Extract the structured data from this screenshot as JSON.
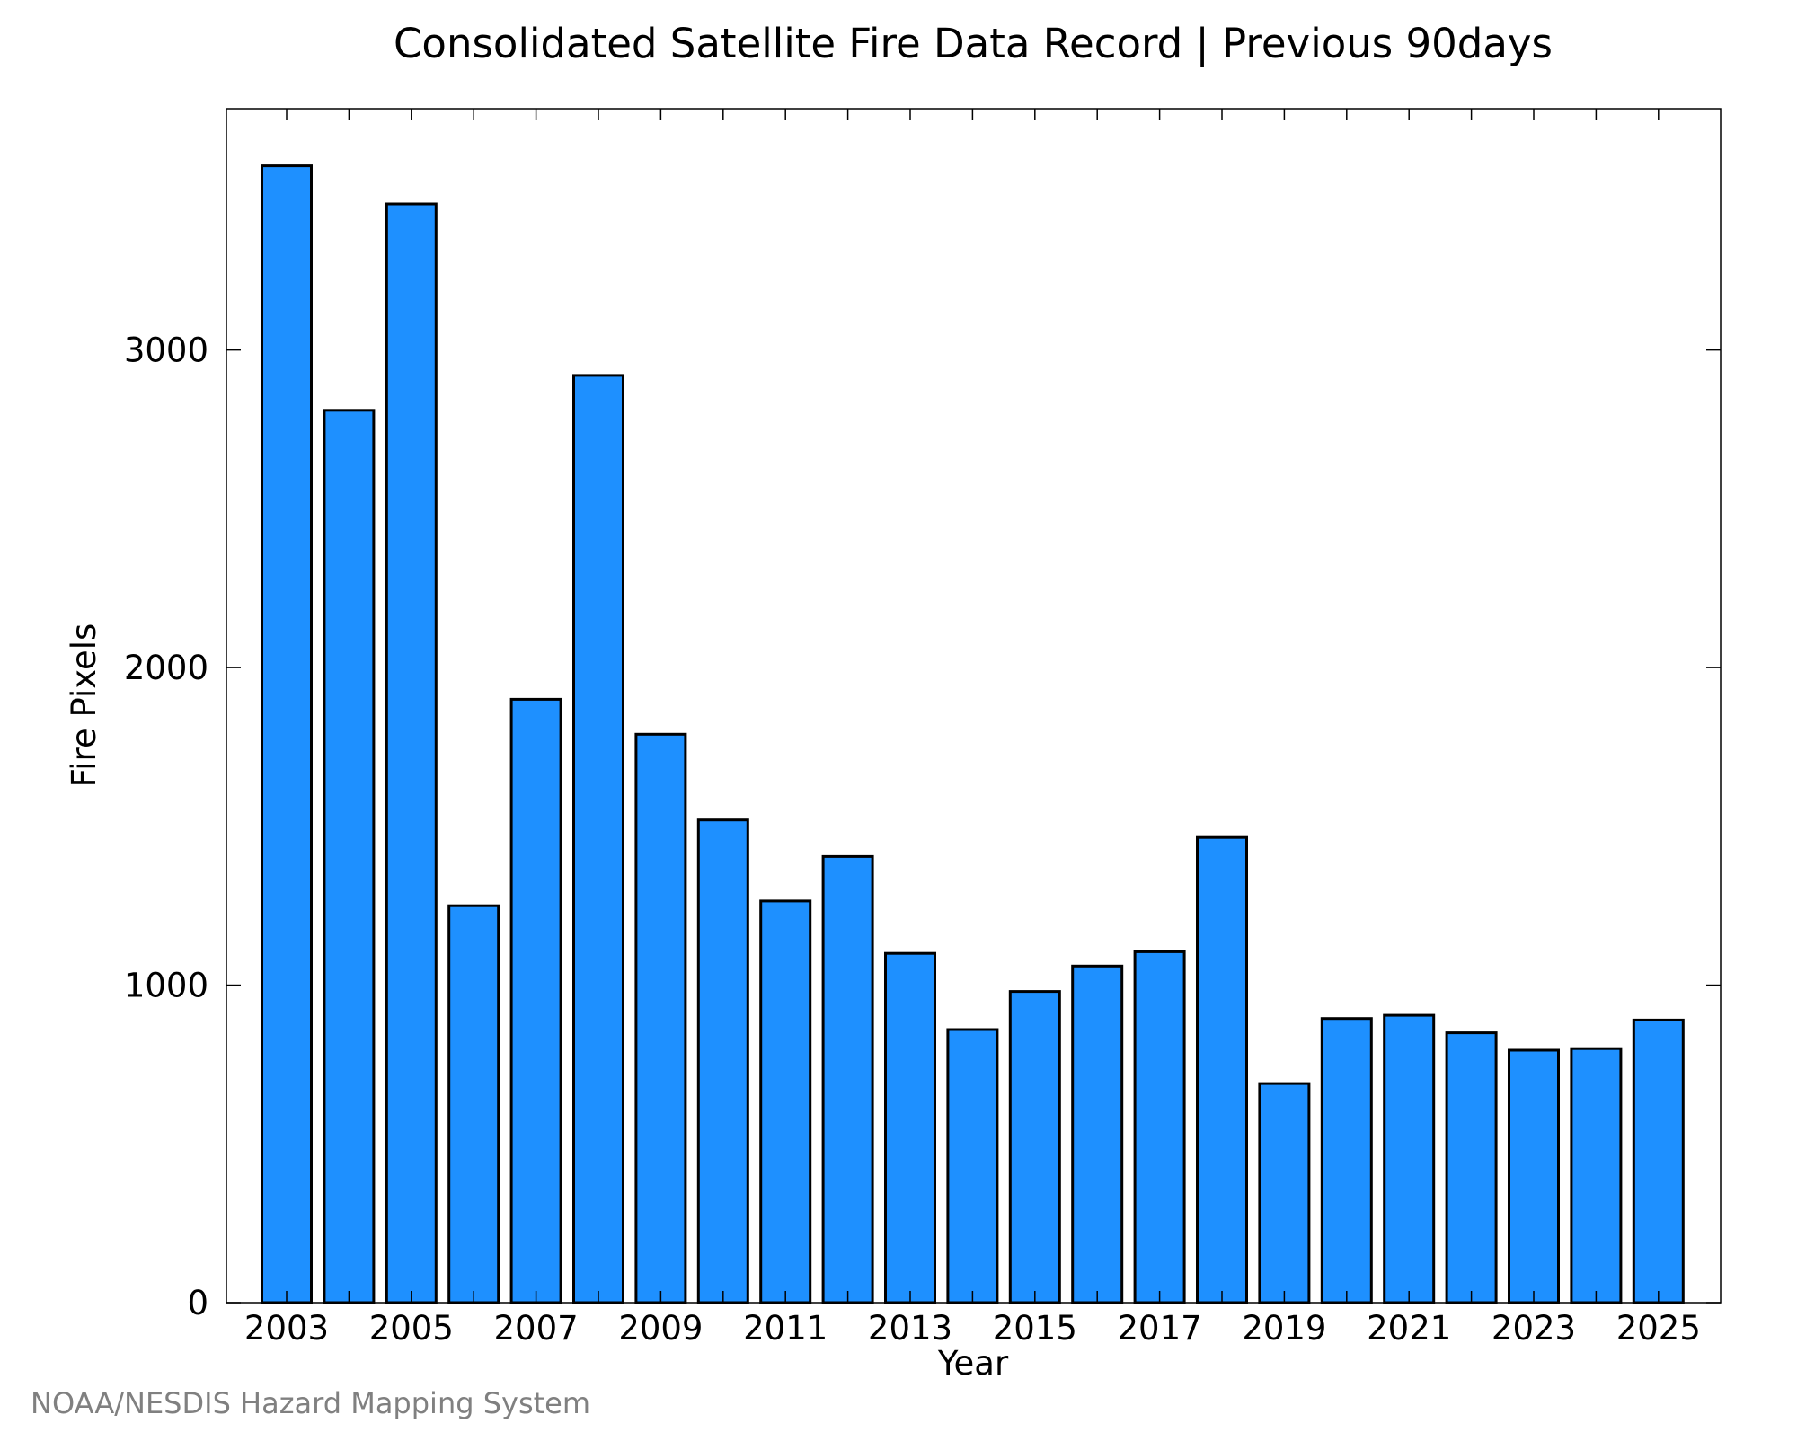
{
  "chart_data": {
    "type": "bar",
    "title": "Consolidated Satellite Fire Data Record | Previous 90days",
    "xlabel": "Year",
    "ylabel": "Fire Pixels",
    "categories": [
      "2003",
      "2004",
      "2005",
      "2006",
      "2007",
      "2008",
      "2009",
      "2010",
      "2011",
      "2012",
      "2013",
      "2014",
      "2015",
      "2016",
      "2017",
      "2018",
      "2019",
      "2020",
      "2021",
      "2022",
      "2023",
      "2024",
      "2025"
    ],
    "x_tick_labels": [
      "2003",
      "2005",
      "2007",
      "2009",
      "2011",
      "2013",
      "2015",
      "2017",
      "2019",
      "2021",
      "2023",
      "2025"
    ],
    "y_tick_labels": [
      "0",
      "1000",
      "2000",
      "3000"
    ],
    "y_ticks": [
      0,
      1000,
      2000,
      3000
    ],
    "values": [
      3580,
      2810,
      3460,
      1250,
      1900,
      2920,
      1790,
      1520,
      1265,
      1405,
      1100,
      860,
      980,
      1060,
      1105,
      1465,
      690,
      895,
      905,
      850,
      795,
      800,
      890
    ],
    "ylim": [
      0,
      3760
    ],
    "bar_color": "#1e90ff",
    "bar_edge_color": "#000000",
    "grid": false,
    "legend": "none"
  },
  "footer": {
    "credit": "NOAA/NESDIS Hazard Mapping System"
  }
}
